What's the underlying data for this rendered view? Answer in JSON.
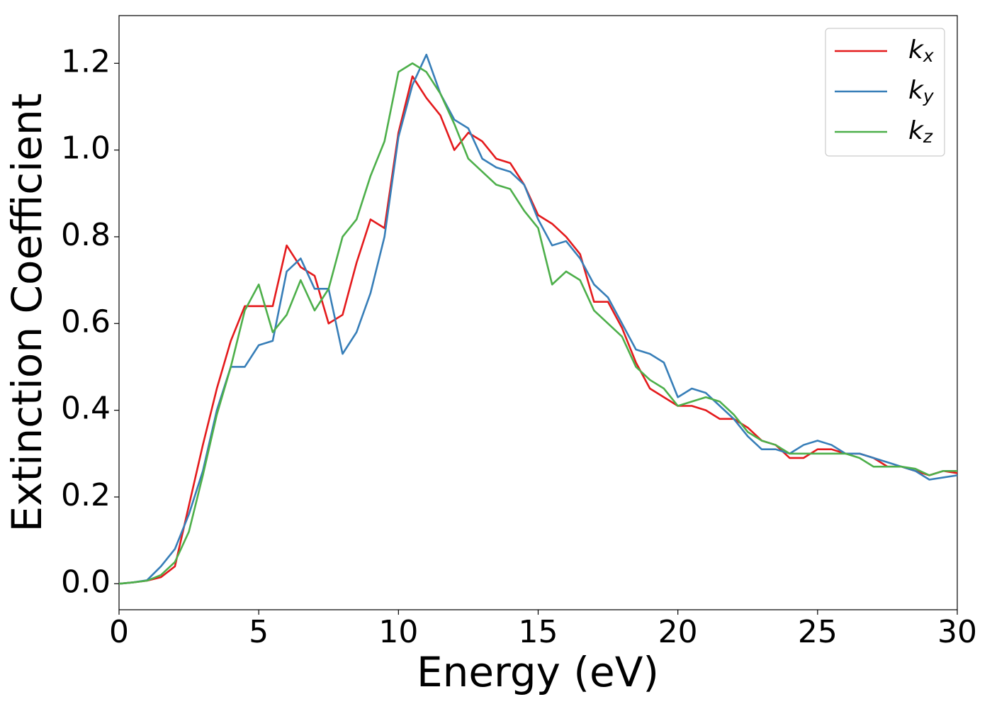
{
  "chart_data": {
    "type": "line",
    "xlabel": "Energy (eV)",
    "ylabel": "Extinction Coefficient",
    "x": [
      0,
      0.5,
      1,
      1.5,
      2,
      2.5,
      3,
      3.5,
      4,
      4.5,
      5,
      5.5,
      6,
      6.5,
      7,
      7.5,
      8,
      8.5,
      9,
      9.5,
      10,
      10.5,
      11,
      11.5,
      12,
      12.5,
      13,
      13.5,
      14,
      14.5,
      15,
      15.5,
      16,
      16.5,
      17,
      17.5,
      18,
      18.5,
      19,
      19.5,
      20,
      20.5,
      21,
      21.5,
      22,
      22.5,
      23,
      23.5,
      24,
      24.5,
      25,
      25.5,
      26,
      26.5,
      27,
      27.5,
      28,
      28.5,
      29,
      29.5,
      30
    ],
    "series": [
      {
        "name": "kx",
        "color": "#e41a1c",
        "values": [
          0,
          0.003,
          0.007,
          0.015,
          0.04,
          0.18,
          0.32,
          0.45,
          0.56,
          0.64,
          0.64,
          0.64,
          0.78,
          0.73,
          0.71,
          0.6,
          0.62,
          0.74,
          0.84,
          0.82,
          1.04,
          1.17,
          1.12,
          1.08,
          1.0,
          1.04,
          1.02,
          0.98,
          0.97,
          0.92,
          0.85,
          0.83,
          0.8,
          0.76,
          0.65,
          0.65,
          0.59,
          0.51,
          0.45,
          0.43,
          0.41,
          0.41,
          0.4,
          0.38,
          0.38,
          0.36,
          0.33,
          0.32,
          0.29,
          0.29,
          0.31,
          0.31,
          0.3,
          0.3,
          0.29,
          0.27,
          0.27,
          0.26,
          0.25,
          0.26,
          0.255
        ]
      },
      {
        "name": "ky",
        "color": "#377eb8",
        "values": [
          0,
          0.003,
          0.008,
          0.04,
          0.08,
          0.16,
          0.26,
          0.4,
          0.5,
          0.5,
          0.55,
          0.56,
          0.72,
          0.75,
          0.68,
          0.68,
          0.53,
          0.58,
          0.67,
          0.8,
          1.03,
          1.15,
          1.22,
          1.13,
          1.07,
          1.05,
          0.98,
          0.96,
          0.95,
          0.92,
          0.84,
          0.78,
          0.79,
          0.75,
          0.69,
          0.66,
          0.6,
          0.54,
          0.53,
          0.51,
          0.43,
          0.45,
          0.44,
          0.41,
          0.38,
          0.34,
          0.31,
          0.31,
          0.3,
          0.32,
          0.33,
          0.32,
          0.3,
          0.3,
          0.29,
          0.28,
          0.27,
          0.26,
          0.24,
          0.245,
          0.25
        ]
      },
      {
        "name": "kz",
        "color": "#4daf4a",
        "values": [
          0,
          0.003,
          0.007,
          0.02,
          0.05,
          0.12,
          0.25,
          0.39,
          0.5,
          0.63,
          0.69,
          0.58,
          0.62,
          0.7,
          0.63,
          0.68,
          0.8,
          0.84,
          0.94,
          1.02,
          1.18,
          1.2,
          1.18,
          1.13,
          1.06,
          0.98,
          0.95,
          0.92,
          0.91,
          0.86,
          0.82,
          0.69,
          0.72,
          0.7,
          0.63,
          0.6,
          0.57,
          0.5,
          0.47,
          0.45,
          0.41,
          0.42,
          0.43,
          0.42,
          0.39,
          0.35,
          0.33,
          0.32,
          0.3,
          0.3,
          0.3,
          0.3,
          0.3,
          0.29,
          0.27,
          0.27,
          0.27,
          0.265,
          0.25,
          0.26,
          0.26
        ]
      }
    ],
    "xlim": [
      0,
      30
    ],
    "xticks": [
      0,
      5,
      10,
      15,
      20,
      25,
      30
    ],
    "ylim": [
      -0.06,
      1.31
    ],
    "yticks": [
      {
        "value": 0,
        "label": "0.0"
      },
      0.2,
      0.4,
      0.6,
      0.8,
      {
        "value": 1,
        "label": "1.0"
      },
      1.2
    ],
    "legend": "upper right"
  }
}
